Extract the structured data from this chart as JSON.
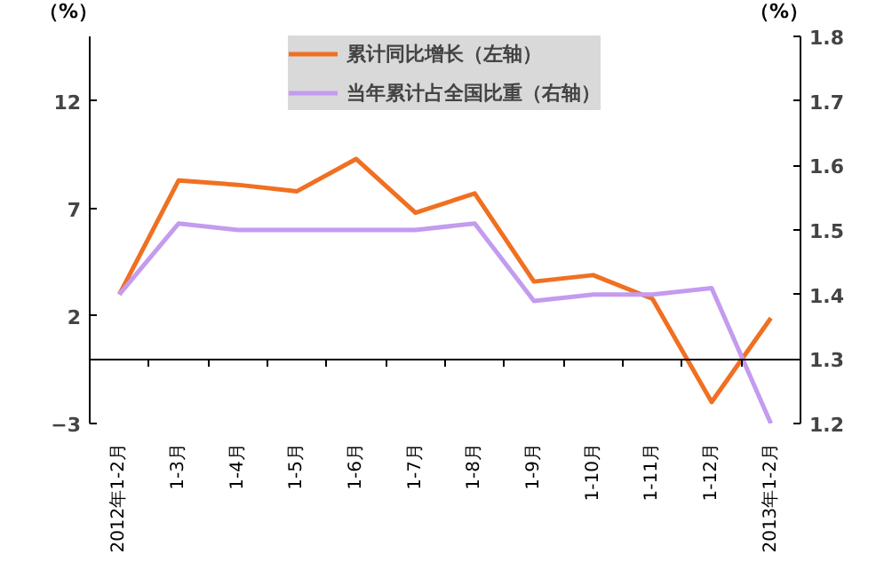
{
  "chart_data": {
    "type": "line",
    "ylabel": "（%）",
    "y2label": "（%）",
    "categories": [
      "2012年1-2月",
      "1-3月",
      "1-4月",
      "1-5月",
      "1-6月",
      "1-7月",
      "1-8月",
      "1-9月",
      "1-10月",
      "1-11月",
      "1-12月",
      "2013年1-2月"
    ],
    "series": [
      {
        "name": "累计同比增长（左轴）",
        "color": "#f07022",
        "values": [
          3.0,
          8.3,
          8.1,
          7.8,
          9.3,
          6.8,
          7.7,
          3.6,
          3.9,
          2.8,
          -2.0,
          1.9
        ]
      },
      {
        "name": "当年累计占全国比重（右轴）",
        "color": "#c39bef",
        "axis": "y2",
        "values": [
          1.4,
          1.51,
          1.5,
          1.5,
          1.5,
          1.5,
          1.51,
          1.39,
          1.4,
          1.4,
          1.41,
          1.2
        ]
      }
    ],
    "ylim": [
      -3,
      15
    ],
    "yticks": [
      -3,
      2,
      7,
      12
    ],
    "y2lim": [
      1.2,
      1.8
    ],
    "y2ticks": [
      1.2,
      1.3,
      1.4,
      1.5,
      1.6,
      1.7,
      1.8
    ],
    "legend": "top",
    "marker": "none",
    "line_style": "solid"
  }
}
